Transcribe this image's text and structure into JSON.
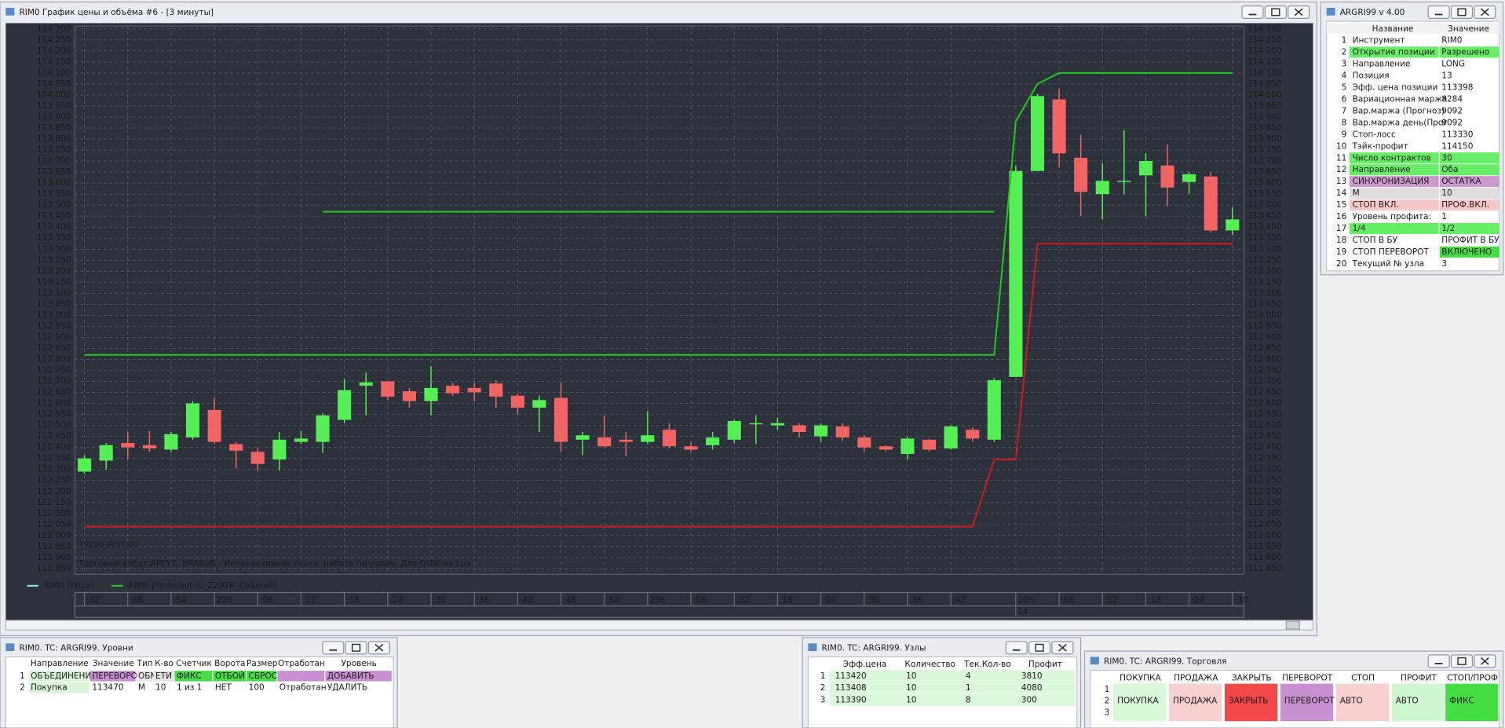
{
  "chart_window": {
    "title": "RIM0 График цены и объёма #6 - [3 минуты]"
  },
  "chart_data": {
    "type": "candlestick",
    "watermark": "TRDROBOT.RU",
    "caption": "Торговый робот АРГУС. BRABUS - Интерактивная сетка, работа по узлам. Для QUIK на Lua.",
    "legend": [
      {
        "label": "RIM0 [Price]",
        "color": "#7fe0f0"
      },
      {
        "label": "RIM0 [*trdrobot.ru_ZZATR_Channel]",
        "color": "#22c322"
      }
    ],
    "grid": true,
    "up_color": "#55ee55",
    "down_color": "#f06464",
    "categories": [
      ":42",
      null,
      ":48",
      null,
      ":54",
      null,
      "22h",
      null,
      ":06",
      null,
      ":12",
      null,
      ":18",
      null,
      ":24",
      null,
      ":30",
      null,
      ":36",
      null,
      ":42",
      null,
      ":48",
      null,
      ":54",
      null,
      "23h",
      null,
      ":06",
      null,
      ":12",
      null,
      ":18",
      null,
      ":24",
      null,
      ":30",
      null,
      ":36",
      null,
      ":42",
      null,
      null,
      "10h",
      null,
      ":06",
      null,
      ":12",
      null,
      ":18",
      null,
      ":24",
      null,
      ":30"
    ],
    "date_categories": [
      null,
      null,
      null,
      null,
      null,
      null,
      null,
      null,
      null,
      null,
      null,
      null,
      null,
      null,
      null,
      null,
      null,
      null,
      null,
      null,
      null,
      null,
      null,
      null,
      null,
      null,
      null,
      null,
      null,
      null,
      null,
      null,
      null,
      null,
      null,
      null,
      null,
      null,
      null,
      null,
      null,
      null,
      null,
      "14",
      null,
      null,
      null,
      null,
      null,
      null,
      null,
      null,
      null,
      null
    ],
    "open": [
      112290,
      112340,
      112420,
      112410,
      112390,
      112445,
      112570,
      112415,
      112380,
      112345,
      112425,
      112425,
      112525,
      112680,
      112700,
      112655,
      112610,
      112680,
      112670,
      112690,
      112635,
      112580,
      112625,
      112435,
      112445,
      112435,
      112425,
      112480,
      112405,
      112410,
      112435,
      112505,
      112500,
      112500,
      112450,
      112495,
      112445,
      112405,
      112370,
      112435,
      112395,
      112480,
      112435,
      112720,
      113655,
      113980,
      113715,
      113550,
      113605,
      113635,
      113680,
      113605,
      113630,
      113385
    ],
    "high": [
      112365,
      112420,
      112470,
      112475,
      112470,
      112610,
      112625,
      112425,
      112400,
      112470,
      112475,
      112555,
      112710,
      112740,
      112700,
      112670,
      112770,
      112695,
      112695,
      112705,
      112645,
      112635,
      112695,
      112470,
      112545,
      112470,
      112565,
      112510,
      112425,
      112470,
      112525,
      112545,
      112535,
      112510,
      112510,
      112510,
      112455,
      112410,
      112450,
      112440,
      112500,
      112490,
      112715,
      113680,
      114005,
      114030,
      113820,
      113690,
      113840,
      113735,
      113775,
      113650,
      113650,
      113490
    ],
    "low": [
      112280,
      112300,
      112345,
      112380,
      112380,
      112435,
      112415,
      112305,
      112295,
      112295,
      112415,
      112375,
      112510,
      112545,
      112615,
      112580,
      112545,
      112635,
      112610,
      112580,
      112550,
      112470,
      112380,
      112365,
      112400,
      112360,
      112415,
      112395,
      112380,
      112390,
      112420,
      112415,
      112480,
      112445,
      112425,
      112430,
      112380,
      112380,
      112345,
      112380,
      112390,
      112425,
      112425,
      112720,
      113655,
      113670,
      113450,
      113435,
      113550,
      113450,
      113495,
      113550,
      113375,
      113365
    ],
    "close": [
      112350,
      112410,
      112400,
      112395,
      112460,
      112600,
      112425,
      112385,
      112325,
      112435,
      112440,
      112545,
      112660,
      112695,
      112630,
      112610,
      112670,
      112645,
      112650,
      112630,
      112580,
      112615,
      112425,
      112455,
      112405,
      112425,
      112455,
      112405,
      112390,
      112445,
      112520,
      112510,
      112510,
      112470,
      112500,
      112445,
      112400,
      112390,
      112440,
      112390,
      112495,
      112440,
      112705,
      113655,
      113995,
      113735,
      113560,
      113610,
      113610,
      113700,
      113580,
      113640,
      113385,
      113435
    ],
    "lines": [
      {
        "color": "#22c322",
        "values": [
          112820,
          112820,
          112820,
          112820,
          112820,
          112820,
          112820,
          112820,
          112820,
          112820,
          112820,
          112820,
          112820,
          112820,
          112820,
          112820,
          112820,
          112820,
          112820,
          112820,
          112820,
          112820,
          112820,
          112820,
          112820,
          112820,
          112820,
          112820,
          112820,
          112820,
          112820,
          112820,
          112820,
          112820,
          112820,
          112820,
          112820,
          112820,
          112820,
          112820,
          112820,
          112820,
          112820,
          113880,
          114050,
          114100,
          114100,
          114100,
          114100,
          114100,
          114100,
          114100,
          114100,
          114100
        ]
      },
      {
        "color": "#c81e1e",
        "values": [
          112040,
          112040,
          112040,
          112040,
          112040,
          112040,
          112040,
          112040,
          112040,
          112040,
          112040,
          112040,
          112040,
          112040,
          112040,
          112040,
          112040,
          112040,
          112040,
          112040,
          112040,
          112040,
          112040,
          112040,
          112040,
          112040,
          112040,
          112040,
          112040,
          112040,
          112040,
          112040,
          112040,
          112040,
          112040,
          112040,
          112040,
          112040,
          112040,
          112040,
          112040,
          112040,
          112345,
          112345,
          113325,
          113325,
          113325,
          113325,
          113325,
          113325,
          113325,
          113325,
          113325,
          113325
        ]
      },
      {
        "color": "#22c322",
        "values": [
          null,
          null,
          null,
          null,
          null,
          null,
          null,
          null,
          null,
          null,
          null,
          113470,
          113470,
          113470,
          113470,
          113470,
          113470,
          113470,
          113470,
          113470,
          113470,
          113470,
          113470,
          113470,
          113470,
          113470,
          113470,
          113470,
          113470,
          113470,
          113470,
          113470,
          113470,
          113470,
          113470,
          113470,
          113470,
          113470,
          113470,
          113470,
          113470,
          113470,
          113470,
          null,
          null,
          null,
          null,
          null,
          null,
          null,
          null,
          null,
          null,
          null
        ]
      }
    ],
    "ylim": [
      111850,
      114300
    ],
    "yticks": [
      {
        "value": 111850,
        "label": "111 850"
      },
      {
        "value": 111900,
        "label": "111 900"
      },
      {
        "value": 111950,
        "label": "111 950"
      },
      {
        "value": 112000,
        "label": "112 000"
      },
      {
        "value": 112050,
        "label": "112 050"
      },
      {
        "value": 112100,
        "label": "112 100"
      },
      {
        "value": 112150,
        "label": "112 150"
      },
      {
        "value": 112200,
        "label": "112 200"
      },
      {
        "value": 112250,
        "label": "112 250"
      },
      {
        "value": 112300,
        "label": "112 300"
      },
      {
        "value": 112350,
        "label": "112 350"
      },
      {
        "value": 112400,
        "label": "112 400"
      },
      {
        "value": 112450,
        "label": "112 450"
      },
      {
        "value": 112500,
        "label": "112 500"
      },
      {
        "value": 112550,
        "label": "112 550"
      },
      {
        "value": 112600,
        "label": "112 600"
      },
      {
        "value": 112650,
        "label": "112 650"
      },
      {
        "value": 112700,
        "label": "112 700"
      },
      {
        "value": 112750,
        "label": "112 750"
      },
      {
        "value": 112800,
        "label": "112 800"
      },
      {
        "value": 112850,
        "label": "112 850"
      },
      {
        "value": 112900,
        "label": "112 900"
      },
      {
        "value": 112950,
        "label": "112 950"
      },
      {
        "value": 113000,
        "label": "113 000"
      },
      {
        "value": 113050,
        "label": "113 050"
      },
      {
        "value": 113100,
        "label": "113 100"
      },
      {
        "value": 113150,
        "label": "113 150"
      },
      {
        "value": 113200,
        "label": "113 200"
      },
      {
        "value": 113250,
        "label": "113 250"
      },
      {
        "value": 113300,
        "label": "113 300"
      },
      {
        "value": 113350,
        "label": "113 350"
      },
      {
        "value": 113400,
        "label": "113 400"
      },
      {
        "value": 113450,
        "label": "113 450"
      },
      {
        "value": 113500,
        "label": "113 500"
      },
      {
        "value": 113550,
        "label": "113 550"
      },
      {
        "value": 113600,
        "label": "113 600"
      },
      {
        "value": 113650,
        "label": "113 650"
      },
      {
        "value": 113700,
        "label": "113 700"
      },
      {
        "value": 113750,
        "label": "113 750"
      },
      {
        "value": 113800,
        "label": "113 800"
      },
      {
        "value": 113850,
        "label": "113 850"
      },
      {
        "value": 113900,
        "label": "113 900"
      },
      {
        "value": 113950,
        "label": "113 950"
      },
      {
        "value": 114000,
        "label": "114 000"
      },
      {
        "value": 114050,
        "label": "114 050"
      },
      {
        "value": 114100,
        "label": "114 100"
      },
      {
        "value": 114150,
        "label": "114 150"
      },
      {
        "value": 114200,
        "label": "114 200"
      },
      {
        "value": 114250,
        "label": "114 250"
      },
      {
        "value": 114300,
        "label": "114 300"
      }
    ]
  },
  "params_window": {
    "title": "ARGRI99 v 4.00",
    "columns": [
      "Название",
      "Значение"
    ],
    "rows": [
      {
        "n": "1",
        "name": "Инструмент",
        "value": "RIM0"
      },
      {
        "n": "2",
        "name": "Открытие позиции",
        "value": "Разрешено",
        "name_bg": "#66ee66",
        "value_bg": "#66ee66"
      },
      {
        "n": "3",
        "name": "Направление",
        "value": "LONG"
      },
      {
        "n": "4",
        "name": "Позиция",
        "value": "13"
      },
      {
        "n": "5",
        "name": "Эфф. цена позиции",
        "value": "113398"
      },
      {
        "n": "6",
        "name": "Вариационная маржа",
        "value": "8284"
      },
      {
        "n": "7",
        "name": "Вар.маржа (Прогноз)",
        "value": "9092"
      },
      {
        "n": "8",
        "name": "Вар.маржа день(Прог",
        "value": "9092"
      },
      {
        "n": "9",
        "name": "Стоп-лосс",
        "value": "113330"
      },
      {
        "n": "10",
        "name": "Тэйк-профит",
        "value": "114150"
      },
      {
        "n": "11",
        "name": "Число контрактов",
        "value": "30",
        "name_bg": "#66ee66",
        "value_bg": "#66ee66"
      },
      {
        "n": "12",
        "name": "Направление",
        "value": "Оба",
        "name_bg": "#66ee66",
        "value_bg": "#66ee66"
      },
      {
        "n": "13",
        "name": "СИНХРОНИЗАЦИЯ",
        "value": "ОСТАТКА",
        "name_bg": "#cc99cc",
        "value_bg": "#cc99cc"
      },
      {
        "n": "14",
        "name": "М",
        "value": "10",
        "name_bg": "#dddddd",
        "value_bg": "#dddddd"
      },
      {
        "n": "15",
        "name": "СТОП ВКЛ.",
        "value": "ПРОФ.ВКЛ.",
        "name_bg": "#f8c8c8",
        "value_bg": "#f8c8c8"
      },
      {
        "n": "16",
        "name": "Уровень профита:",
        "value": "1"
      },
      {
        "n": "17",
        "name": "1/4",
        "value": "1/2",
        "name_bg": "#66ee66",
        "value_bg": "#66ee66"
      },
      {
        "n": "18",
        "name": "СТОП В БУ",
        "value": "ПРОФИТ В БУ"
      },
      {
        "n": "19",
        "name": "СТОП ПЕРЕВОРОТ",
        "value": "ВКЛЮЧЕНО",
        "value_bg": "#44dd44"
      },
      {
        "n": "20",
        "name": "Текущий № узла",
        "value": "3"
      }
    ]
  },
  "levels_window": {
    "title": "RIM0. TC: ARGRI99. Уровни",
    "columns": [
      "Направление",
      "Значение",
      "Тип",
      "К-во",
      "Счетчик",
      "Ворота",
      "Размер",
      "Отработан",
      "Уровень"
    ],
    "rows": [
      {
        "n": "1",
        "cells": [
          {
            "text": "ОБЪЕДИНЕНИ",
            "bg": "#d8f5d8"
          },
          {
            "text": "ПЕРЕВОРО",
            "bg": "#c890d0"
          },
          {
            "text": "ОБМ",
            "bg": "#e4e4e4"
          },
          {
            "text": "ЕТИ",
            "bg": "#e4e4e4"
          },
          {
            "text": "ФИКС",
            "bg": "#44dd44"
          },
          {
            "text": "ОТБОЙ",
            "bg": "#44dd44"
          },
          {
            "text": "СБРОС",
            "bg": "#44dd44"
          },
          {
            "bg": "#c890d0"
          },
          {
            "text": "ДОБАВИТЬ",
            "bg": "#c890d0"
          }
        ]
      },
      {
        "n": "2",
        "cells": [
          {
            "text": "Покупка",
            "bg": "#d8f5d8"
          },
          {
            "text": "113470"
          },
          {
            "text": "М"
          },
          {
            "text": "10"
          },
          {
            "text": "1 из 1"
          },
          {
            "text": "НЕТ"
          },
          {
            "text": "100"
          },
          {
            "text": "Отработан"
          },
          {
            "text": "УДАЛИТЬ"
          }
        ]
      }
    ]
  },
  "nodes_window": {
    "title": "RIM0. TC: ARGRI99. Узлы",
    "columns": [
      "Эфф.цена",
      "Количество",
      "Тек.Кол-во",
      "Профит"
    ],
    "row_bg": "#daf8da",
    "rows": [
      {
        "n": "1",
        "cells": [
          "113420",
          "10",
          "4",
          "3810"
        ]
      },
      {
        "n": "2",
        "cells": [
          "113408",
          "10",
          "1",
          "4080"
        ]
      },
      {
        "n": "3",
        "cells": [
          "113390",
          "10",
          "8",
          "300"
        ]
      }
    ]
  },
  "trade_window": {
    "title": "RIM0. TC: ARGRI99. Торговля",
    "columns": [
      "ПОКУПКА",
      "ПРОДАЖА",
      "ЗАКРЫТЬ",
      "ПЕРЕВОРОТ",
      "СТОП",
      "ПРОФИТ",
      "СТОП/ПРОФ"
    ],
    "row_numbers": [
      "1",
      "2",
      "3"
    ],
    "buttons": [
      {
        "text": "ПОКУПКА",
        "bg": "#d8f8d8"
      },
      {
        "text": "ПРОДАЖА",
        "bg": "#f8d0d0"
      },
      {
        "text": "ЗАКРЫТЬ",
        "bg": "#f04848"
      },
      {
        "text": "ПЕРЕВОРОТ",
        "bg": "#c890d0"
      },
      {
        "text": "АВТО",
        "bg": "#f8d0d0"
      },
      {
        "text": "АВТО",
        "bg": "#d0f8d0"
      },
      {
        "text": "ФИКС",
        "bg": "#44dd44"
      }
    ]
  }
}
